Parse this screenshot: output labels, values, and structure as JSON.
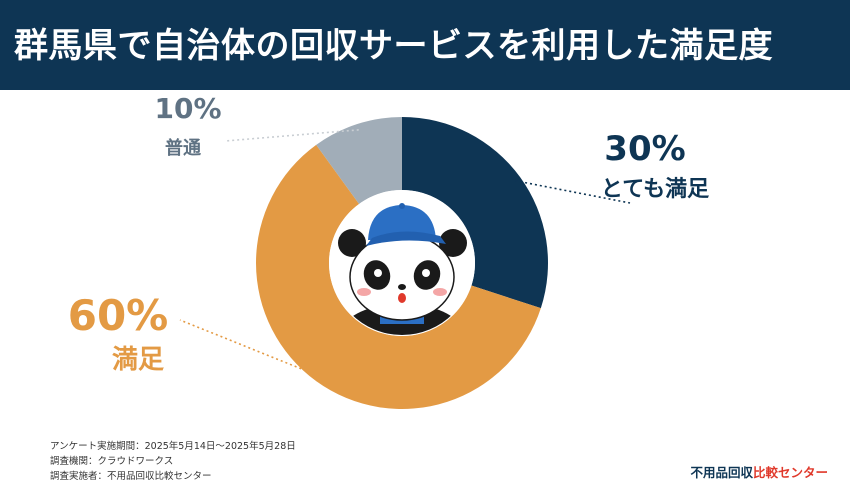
{
  "header": {
    "title": "群馬県で自治体の回収サービスを利用した満足度"
  },
  "chart_data": {
    "type": "pie",
    "title": "群馬県で自治体の回収サービスを利用した満足度",
    "slices": [
      {
        "label": "とても満足",
        "value": 30,
        "pct_text": "30%",
        "color": "#0e3554"
      },
      {
        "label": "満足",
        "value": 60,
        "pct_text": "60%",
        "color": "#e39a44"
      },
      {
        "label": "普通",
        "value": 10,
        "pct_text": "10%",
        "color": "#a1adb8"
      }
    ],
    "start_angle_deg": 0,
    "donut": true
  },
  "footer": {
    "line1": "アンケート実施期間：2025年5月14日〜2025年5月28日",
    "line2": "調査機関：クラウドワークス",
    "line3": "調査実施者：不用品回収比較センター"
  },
  "brand": {
    "part1": "不用品回収",
    "part2": "比較センター"
  },
  "colors": {
    "header_bg": "#0e3554",
    "accent_red": "#e0392b"
  },
  "icons": {
    "center": "panda-mascot-icon"
  }
}
